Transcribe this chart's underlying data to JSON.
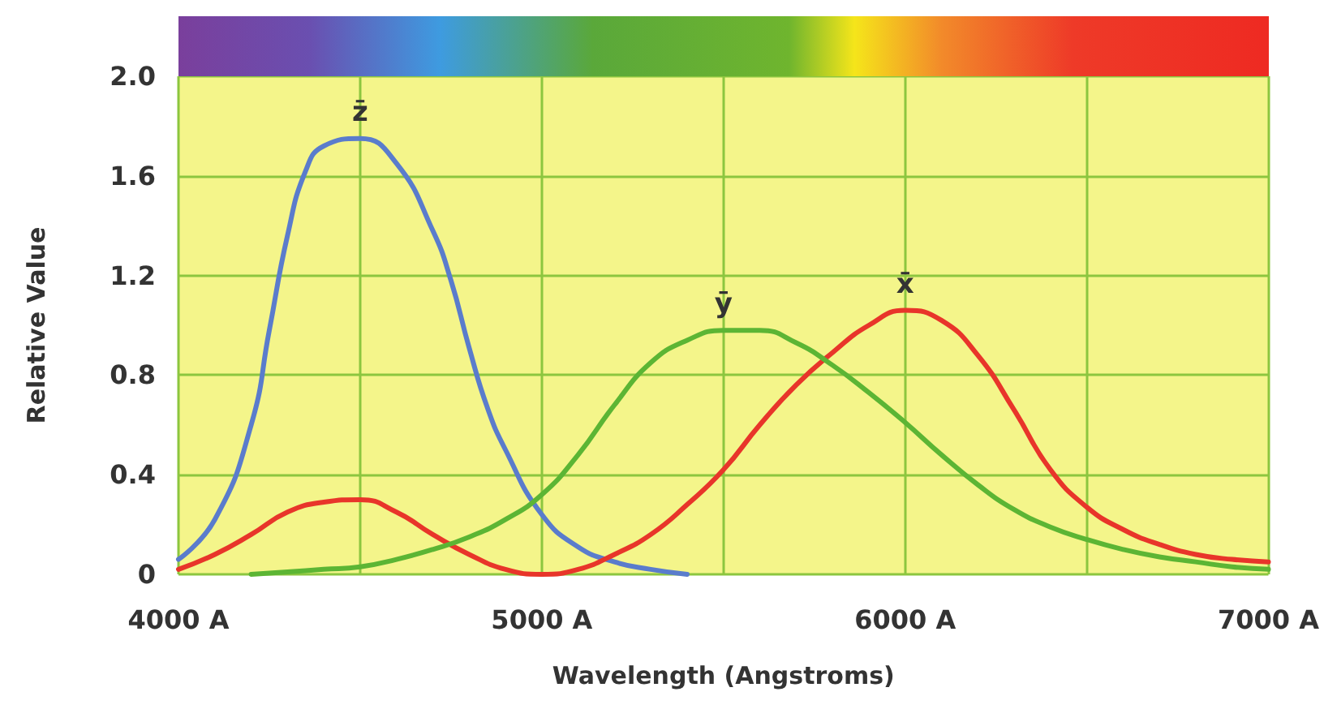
{
  "chart_data": {
    "type": "line",
    "xlabel": "Wavelength (Angstroms)",
    "ylabel": "Relative Value",
    "xlim": [
      4000,
      7000
    ],
    "ylim": [
      0,
      2
    ],
    "xticks": [
      {
        "value": 4000,
        "label": "4000 A"
      },
      {
        "value": 4500,
        "label": null
      },
      {
        "value": 5000,
        "label": "5000 A"
      },
      {
        "value": 5500,
        "label": null
      },
      {
        "value": 6000,
        "label": "6000 A"
      },
      {
        "value": 6500,
        "label": null
      },
      {
        "value": 7000,
        "label": "7000 A"
      }
    ],
    "yticks": [
      0,
      0.4,
      0.8,
      1.2,
      1.6,
      {
        "value": 2,
        "label": "2.0"
      }
    ],
    "grid": true,
    "marker": "none",
    "line_style": "solid",
    "series": [
      {
        "name": "z̄",
        "color": "#5a7ccc",
        "x": [
          4000,
          4100,
          4200,
          4250,
          4300,
          4350,
          4400,
          4500,
          4600,
          4700,
          4750,
          4800,
          4850,
          4900,
          5000,
          5100,
          5200,
          5300,
          5400
        ],
        "values": [
          0.06,
          0.22,
          0.6,
          0.98,
          1.36,
          1.62,
          1.72,
          1.75,
          1.65,
          1.38,
          1.18,
          0.91,
          0.67,
          0.5,
          0.24,
          0.11,
          0.05,
          0.02,
          0
        ]
      },
      {
        "name": "x̄",
        "color": "#e8352a",
        "x": [
          4000,
          4100,
          4200,
          4300,
          4400,
          4500,
          4600,
          4700,
          4800,
          4900,
          5000,
          5100,
          5200,
          5300,
          5400,
          5500,
          5600,
          5700,
          5800,
          5900,
          6000,
          6100,
          6200,
          6300,
          6400,
          6500,
          6600,
          6700,
          6800,
          6900,
          7000
        ],
        "values": [
          0.02,
          0.08,
          0.16,
          0.25,
          0.29,
          0.3,
          0.25,
          0.16,
          0.08,
          0.02,
          0,
          0.02,
          0.08,
          0.16,
          0.28,
          0.42,
          0.6,
          0.76,
          0.89,
          1,
          1.06,
          1.02,
          0.88,
          0.66,
          0.42,
          0.27,
          0.18,
          0.12,
          0.08,
          0.06,
          0.05
        ]
      },
      {
        "name": "ȳ",
        "color": "#5cb534",
        "x": [
          4200,
          4300,
          4400,
          4500,
          4600,
          4700,
          4800,
          4900,
          5000,
          5100,
          5200,
          5300,
          5400,
          5500,
          5600,
          5700,
          5800,
          5900,
          6000,
          6100,
          6200,
          6300,
          6400,
          6500,
          6600,
          6700,
          6800,
          6900,
          7000
        ],
        "values": [
          0,
          0.01,
          0.02,
          0.03,
          0.06,
          0.1,
          0.15,
          0.22,
          0.32,
          0.48,
          0.68,
          0.85,
          0.94,
          0.98,
          0.98,
          0.93,
          0.84,
          0.73,
          0.61,
          0.48,
          0.36,
          0.26,
          0.19,
          0.14,
          0.1,
          0.07,
          0.05,
          0.03,
          0.02
        ]
      }
    ]
  }
}
